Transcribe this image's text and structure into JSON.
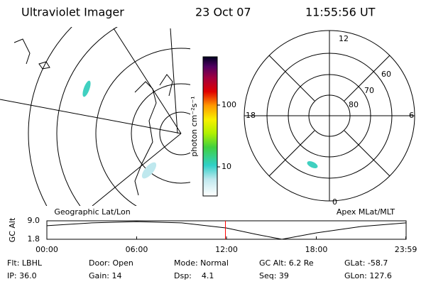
{
  "header": {
    "title": "Ultraviolet Imager",
    "date": "23 Oct 07",
    "time": "11:55:56 UT"
  },
  "map": {
    "label": "Geographic Lat/Lon"
  },
  "colorbar": {
    "label": "photon cm⁻²s⁻¹",
    "ticks": [
      100,
      10
    ]
  },
  "polar": {
    "label": "Apex MLat/MLT",
    "mlt_labels": [
      12,
      18,
      6,
      0
    ],
    "lat_labels": [
      60,
      70,
      80
    ]
  },
  "chart_data": {
    "type": "line",
    "y_label": "GC Alt",
    "x": [
      0,
      3,
      6,
      9,
      12,
      14,
      15.7,
      18,
      21,
      24
    ],
    "values": [
      7.1,
      8.2,
      8.7,
      8.2,
      6.2,
      3.7,
      1.8,
      4.3,
      6.8,
      8.2
    ],
    "color": "#000000",
    "xlim": [
      0,
      24
    ],
    "xticks": [
      {
        "value": 0,
        "label": "00:00"
      },
      {
        "value": 6,
        "label": "06:00"
      },
      {
        "value": 12,
        "label": "12:00"
      },
      {
        "value": 18,
        "label": "18:00"
      },
      {
        "value": 23.98,
        "label": "23:59"
      }
    ],
    "ylim": [
      1.8,
      9.0
    ],
    "yticks": [
      {
        "value": 9,
        "label": "9.0"
      },
      1.8
    ],
    "marker_x": 11.93,
    "marker_color": "#ff0000"
  },
  "info": {
    "rows": [
      [
        "Flt: LBHL",
        "Door: Open",
        "Mode: Normal",
        "GC Alt: 6.2 Re",
        "GLat: -58.7"
      ],
      [
        "IP: 36.0",
        "Gain: 14",
        "Dsp:    4.1",
        "Seq: 39",
        "GLon: 127.6"
      ]
    ]
  }
}
